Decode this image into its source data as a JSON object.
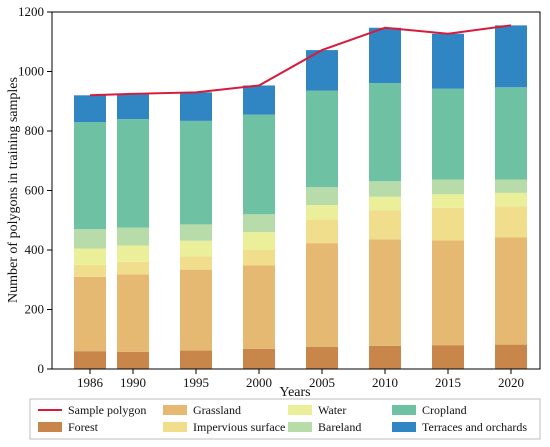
{
  "chart_data": {
    "type": "bar",
    "xlabel": "Years",
    "ylabel": "Number of polygons in training samples",
    "ylim": [
      0,
      1200
    ],
    "yticks": [
      0,
      200,
      400,
      600,
      800,
      1000,
      1200
    ],
    "categories": [
      "1986",
      "1990",
      "1995",
      "2000",
      "2005",
      "2010",
      "2015",
      "2020"
    ],
    "stacked_series": [
      {
        "name": "Forest",
        "color": "#c8864b",
        "values": [
          60,
          58,
          62,
          68,
          75,
          78,
          80,
          82
        ]
      },
      {
        "name": "Grassland",
        "color": "#e6b973",
        "values": [
          250,
          260,
          272,
          280,
          348,
          358,
          352,
          360
        ]
      },
      {
        "name": "Impervious surface",
        "color": "#f0de8c",
        "values": [
          40,
          42,
          45,
          52,
          80,
          98,
          110,
          105
        ]
      },
      {
        "name": "Water",
        "color": "#ecef9a",
        "values": [
          55,
          55,
          52,
          60,
          48,
          45,
          45,
          45
        ]
      },
      {
        "name": "Bareland",
        "color": "#b7dcaa",
        "values": [
          65,
          60,
          55,
          60,
          60,
          52,
          50,
          45
        ]
      },
      {
        "name": "Cropland",
        "color": "#6fc1a4",
        "values": [
          360,
          365,
          348,
          335,
          325,
          330,
          305,
          310
        ]
      },
      {
        "name": "Terraces and orchards",
        "color": "#2f86c3",
        "values": [
          90,
          85,
          96,
          98,
          136,
          186,
          185,
          208
        ]
      }
    ],
    "line_series": {
      "name": "Sample polygon",
      "color": "#d81b3c",
      "values": [
        920,
        925,
        930,
        953,
        1072,
        1147,
        1127,
        1155
      ]
    },
    "legend_placement": "bottom",
    "grid": false
  }
}
